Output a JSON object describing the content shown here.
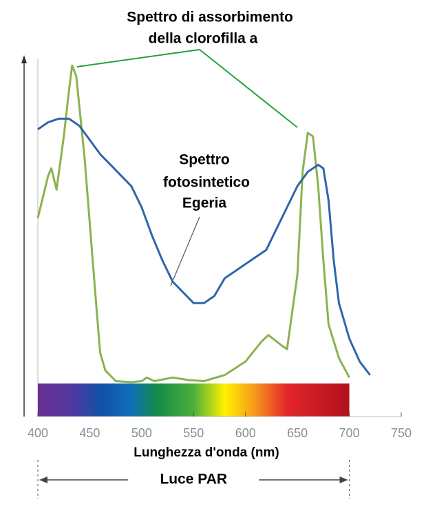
{
  "chart_data": {
    "type": "line",
    "annotation_title": [
      "Spettro di assorbimento",
      "della clorofilla a"
    ],
    "annotation_egeria": [
      "Spettro",
      "fotosintetico",
      "Egeria"
    ],
    "x_label": "Lunghezza d'onda (nm)",
    "par_label": "Luce PAR",
    "par_range": [
      400,
      700
    ],
    "xlim": [
      400,
      750
    ],
    "xticks": [
      400,
      450,
      500,
      550,
      600,
      650,
      700,
      750
    ],
    "ylim": [
      0,
      1
    ],
    "series": [
      {
        "color": "#8cb24f",
        "x": [
          400,
          410,
          413,
          418,
          425,
          430,
          433,
          437,
          445,
          455,
          460,
          465,
          475,
          490,
          500,
          505,
          512,
          530,
          545,
          560,
          580,
          600,
          615,
          622,
          635,
          640,
          650,
          655,
          660,
          665,
          670,
          675,
          680,
          690,
          700
        ],
        "values": [
          0.56,
          0.68,
          0.7,
          0.64,
          0.79,
          0.92,
          0.99,
          0.96,
          0.73,
          0.36,
          0.18,
          0.13,
          0.1,
          0.097,
          0.1,
          0.11,
          0.1,
          0.11,
          0.103,
          0.1,
          0.117,
          0.155,
          0.21,
          0.23,
          0.2,
          0.19,
          0.4,
          0.69,
          0.8,
          0.79,
          0.65,
          0.44,
          0.26,
          0.165,
          0.11
        ]
      },
      {
        "color": "#2e66ad",
        "x": [
          400,
          410,
          420,
          430,
          440,
          450,
          460,
          470,
          480,
          490,
          500,
          510,
          520,
          530,
          540,
          550,
          560,
          570,
          580,
          590,
          600,
          610,
          620,
          630,
          640,
          650,
          660,
          670,
          675,
          680,
          685,
          690,
          700,
          710,
          720
        ],
        "values": [
          0.81,
          0.83,
          0.84,
          0.84,
          0.82,
          0.78,
          0.74,
          0.71,
          0.68,
          0.65,
          0.59,
          0.51,
          0.44,
          0.38,
          0.35,
          0.32,
          0.32,
          0.34,
          0.39,
          0.41,
          0.43,
          0.45,
          0.47,
          0.53,
          0.59,
          0.65,
          0.69,
          0.71,
          0.7,
          0.61,
          0.44,
          0.32,
          0.22,
          0.155,
          0.117
        ]
      }
    ]
  }
}
